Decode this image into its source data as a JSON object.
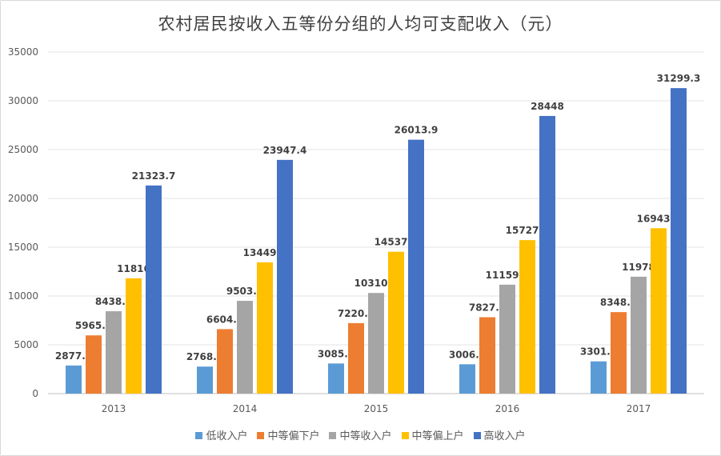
{
  "chart_data": {
    "type": "bar",
    "title": "农村居民按收入五等份分组的人均可支配收入（元）",
    "categories": [
      "2013",
      "2014",
      "2015",
      "2016",
      "2017"
    ],
    "ylim": [
      0,
      35000
    ],
    "yticks": [
      "0",
      "5000",
      "10000",
      "15000",
      "20000",
      "25000",
      "30000",
      "35000"
    ],
    "grid": true,
    "legend_position": "bottom",
    "series": [
      {
        "name": "低收入户",
        "color": "#5b9bd5",
        "values": [
          2877.9,
          2768.1,
          3085.6,
          3006.5,
          3301.9
        ],
        "labels": [
          "2877.9",
          "2768.1",
          "3085.6",
          "3006.5",
          "3301.9"
        ]
      },
      {
        "name": "中等偏下户",
        "color": "#ed7d31",
        "values": [
          5965.6,
          6604.4,
          7220.9,
          7827.7,
          8348.6
        ],
        "labels": [
          "5965.6",
          "6604.4",
          "7220.9",
          "7827.7",
          "8348.6"
        ]
      },
      {
        "name": "中等收入户",
        "color": "#a5a5a5",
        "values": [
          8438.3,
          9503.9,
          10310.6,
          11159.1,
          11978
        ],
        "labels": [
          "8438.3",
          "9503.9",
          "10310.6",
          "11159.1",
          "11978"
        ]
      },
      {
        "name": "中等偏上户",
        "color": "#ffc000",
        "values": [
          11816,
          13449.2,
          14537.3,
          15727.4,
          16943.6
        ],
        "labels": [
          "11816",
          "13449.2",
          "14537.3",
          "15727.4",
          "16943.6"
        ]
      },
      {
        "name": "高收入户",
        "color": "#4472c4",
        "values": [
          21323.7,
          23947.4,
          26013.9,
          28448,
          31299.3
        ],
        "labels": [
          "21323.7",
          "23947.4",
          "26013.9",
          "28448",
          "31299.3"
        ]
      }
    ]
  }
}
